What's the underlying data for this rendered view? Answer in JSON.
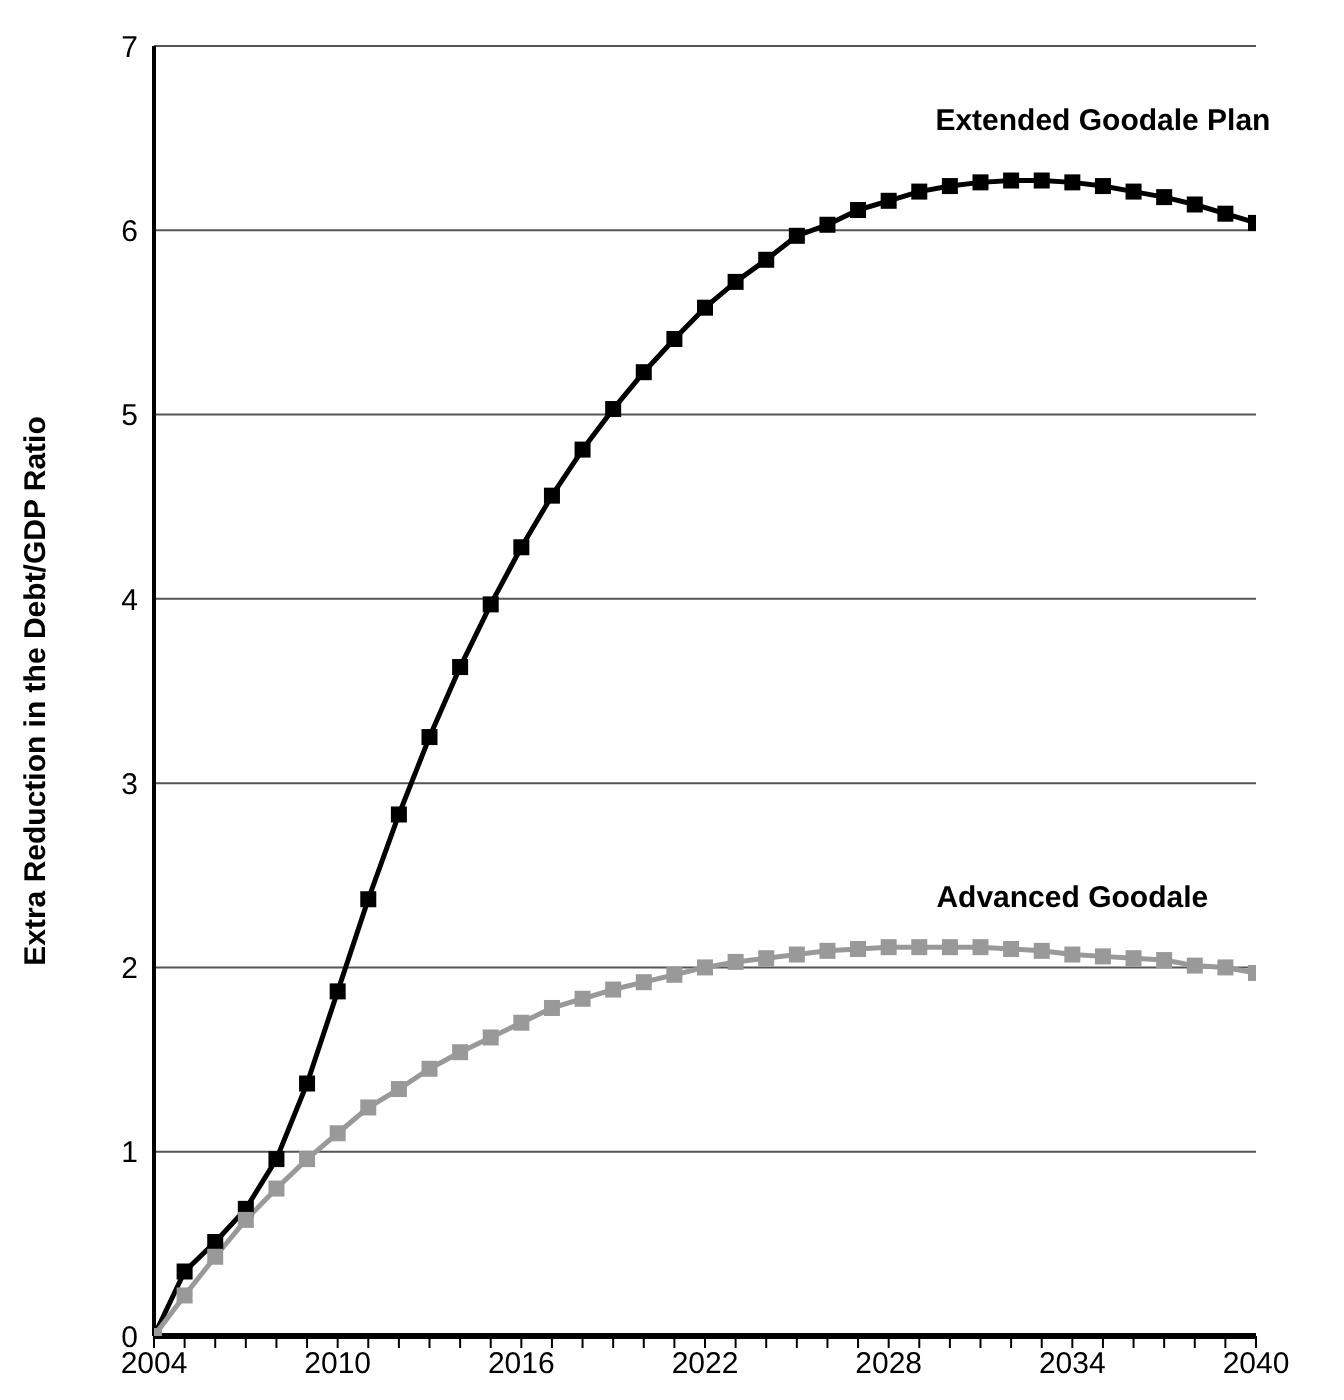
{
  "chart_data": {
    "type": "line",
    "ylabel": "Extra Reduction in the Debt/GDP Ratio",
    "x": [
      2004,
      2005,
      2006,
      2007,
      2008,
      2009,
      2010,
      2011,
      2012,
      2013,
      2014,
      2015,
      2016,
      2017,
      2018,
      2019,
      2020,
      2021,
      2022,
      2023,
      2024,
      2025,
      2026,
      2027,
      2028,
      2029,
      2030,
      2031,
      2032,
      2033,
      2034,
      2035,
      2036,
      2037,
      2038,
      2039,
      2040
    ],
    "series": [
      {
        "name": "Extended Goodale Plan",
        "color": "#000000",
        "values": [
          0,
          0.35,
          0.51,
          0.69,
          0.96,
          1.37,
          1.87,
          2.37,
          2.83,
          3.25,
          3.63,
          3.97,
          4.28,
          4.56,
          4.81,
          5.03,
          5.23,
          5.41,
          5.58,
          5.72,
          5.84,
          5.97,
          6.03,
          6.11,
          6.16,
          6.21,
          6.24,
          6.26,
          6.27,
          6.27,
          6.26,
          6.24,
          6.21,
          6.18,
          6.14,
          6.09,
          6.04
        ]
      },
      {
        "name": "Advanced Goodale",
        "color": "#999999",
        "values": [
          0,
          0.22,
          0.43,
          0.63,
          0.8,
          0.96,
          1.1,
          1.24,
          1.34,
          1.45,
          1.54,
          1.62,
          1.7,
          1.78,
          1.83,
          1.88,
          1.92,
          1.96,
          2.0,
          2.03,
          2.05,
          2.07,
          2.09,
          2.1,
          2.11,
          2.11,
          2.11,
          2.11,
          2.1,
          2.09,
          2.07,
          2.06,
          2.05,
          2.04,
          2.01,
          2.0,
          1.97
        ]
      }
    ],
    "xlim": [
      2004,
      2040
    ],
    "xticks": [
      2004,
      {
        "value": 2005,
        "label": null
      },
      {
        "value": 2006,
        "label": null
      },
      {
        "value": 2007,
        "label": null
      },
      {
        "value": 2008,
        "label": null
      },
      {
        "value": 2009,
        "label": null
      },
      2010,
      {
        "value": 2011,
        "label": null
      },
      {
        "value": 2012,
        "label": null
      },
      {
        "value": 2013,
        "label": null
      },
      {
        "value": 2014,
        "label": null
      },
      {
        "value": 2015,
        "label": null
      },
      2016,
      {
        "value": 2017,
        "label": null
      },
      {
        "value": 2018,
        "label": null
      },
      {
        "value": 2019,
        "label": null
      },
      {
        "value": 2020,
        "label": null
      },
      {
        "value": 2021,
        "label": null
      },
      2022,
      {
        "value": 2023,
        "label": null
      },
      {
        "value": 2024,
        "label": null
      },
      {
        "value": 2025,
        "label": null
      },
      {
        "value": 2026,
        "label": null
      },
      {
        "value": 2027,
        "label": null
      },
      2028,
      {
        "value": 2029,
        "label": null
      },
      {
        "value": 2030,
        "label": null
      },
      {
        "value": 2031,
        "label": null
      },
      {
        "value": 2032,
        "label": null
      },
      {
        "value": 2033,
        "label": null
      },
      2034,
      {
        "value": 2035,
        "label": null
      },
      {
        "value": 2036,
        "label": null
      },
      {
        "value": 2037,
        "label": null
      },
      {
        "value": 2038,
        "label": null
      },
      {
        "value": 2039,
        "label": null
      },
      2040
    ],
    "ylim": [
      0,
      7
    ],
    "yticks": [
      0,
      1,
      2,
      3,
      4,
      5,
      6,
      7
    ],
    "grid": "y",
    "marker": "square",
    "line_style": "solid",
    "legend": false
  }
}
